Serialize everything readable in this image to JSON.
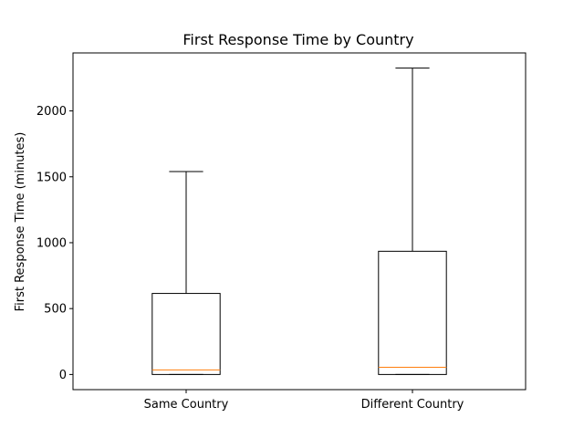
{
  "chart_data": {
    "type": "box",
    "title": "First Response Time by Country",
    "xlabel": "",
    "ylabel": "First Response Time (minutes)",
    "categories": [
      "Same Country",
      "Different Country"
    ],
    "boxes": [
      {
        "category": "Same Country",
        "whisker_low": 0,
        "q1": 0,
        "median": 35,
        "q3": 615,
        "whisker_high": 1540
      },
      {
        "category": "Different Country",
        "whisker_low": 0,
        "q1": 0,
        "median": 55,
        "q3": 935,
        "whisker_high": 2325
      }
    ],
    "ylim": [
      -115,
      2440
    ],
    "yticks": [
      0,
      500,
      1000,
      1500,
      2000
    ],
    "grid": false,
    "colors": {
      "box": "#000000",
      "median": "#ff7f0e"
    }
  }
}
